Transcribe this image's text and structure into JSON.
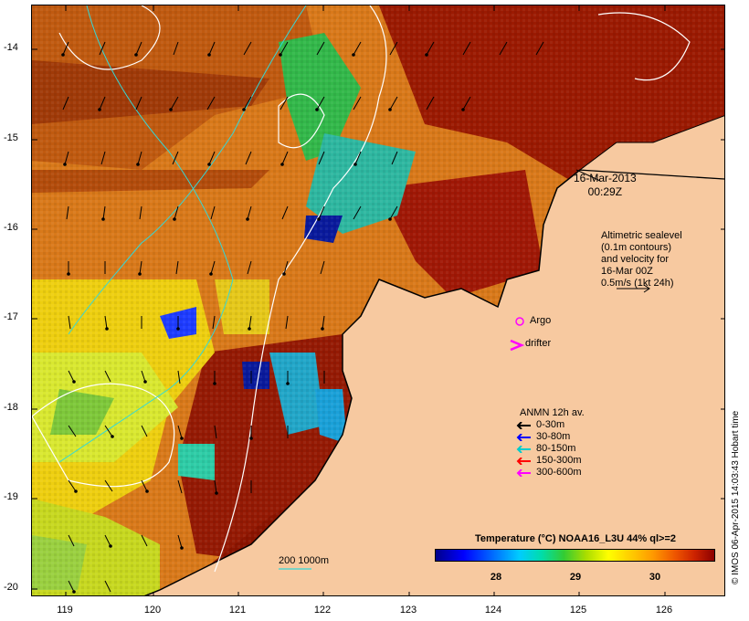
{
  "map": {
    "date": "16-Mar-2013",
    "time": "00:29Z",
    "sealevel_lines": [
      "Altimetric sealevel",
      "(0.1m contours)",
      "and velocity for",
      "16-Mar 00Z",
      "0.5m/s (1kt 24h)"
    ],
    "argo_label": "Argo",
    "drifter_label": "drifter",
    "anmn_title": "ANMN 12h av.",
    "anmn_legend": [
      {
        "label": "0-30m",
        "color": "#000000"
      },
      {
        "label": "30-80m",
        "color": "#0000ff"
      },
      {
        "label": "80-150m",
        "color": "#00cccc"
      },
      {
        "label": "150-300m",
        "color": "#ff0000"
      },
      {
        "label": "300-600m",
        "color": "#ff00ff"
      }
    ],
    "depth_label": "200  1000m",
    "credit": "© IMOS 06-Apr-2015 14:03:43 Hobart time"
  },
  "axes": {
    "y_ticks": [
      "-14",
      "-15",
      "-16",
      "-17",
      "-18",
      "-19",
      "-20"
    ],
    "x_ticks": [
      "119",
      "120",
      "121",
      "122",
      "123",
      "124",
      "125",
      "126"
    ]
  },
  "colorbar": {
    "title": "Temperature (°C) NOAA16_L3U 44% ql>=2",
    "ticks": [
      "28",
      "29",
      "30"
    ]
  },
  "colors": {
    "land": "#f7c9a0",
    "warm": "#8b1a00",
    "mid": "#e08a00",
    "cool": "#ffff33",
    "coldest": "#00008b"
  }
}
